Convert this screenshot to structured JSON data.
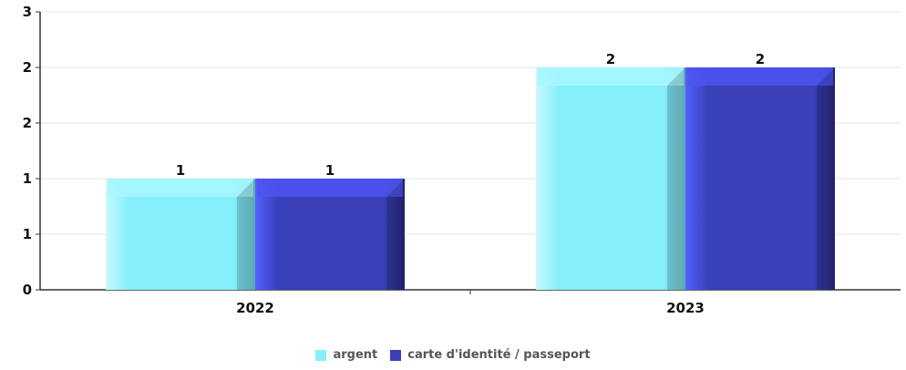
{
  "chart_data": {
    "type": "bar",
    "categories": [
      "2022",
      "2023"
    ],
    "series": [
      {
        "name": "argent",
        "values": [
          1,
          2
        ],
        "color": "#86EFFC"
      },
      {
        "name": "carte d'identité / passeport",
        "values": [
          1,
          2
        ],
        "color": "#3A40B8"
      }
    ],
    "y_tick_labels": [
      "0",
      "1",
      "1",
      "2",
      "2",
      "3"
    ],
    "ylim": [
      0,
      2.5
    ],
    "grid": true,
    "legend": "bottom",
    "data_labels": true
  }
}
